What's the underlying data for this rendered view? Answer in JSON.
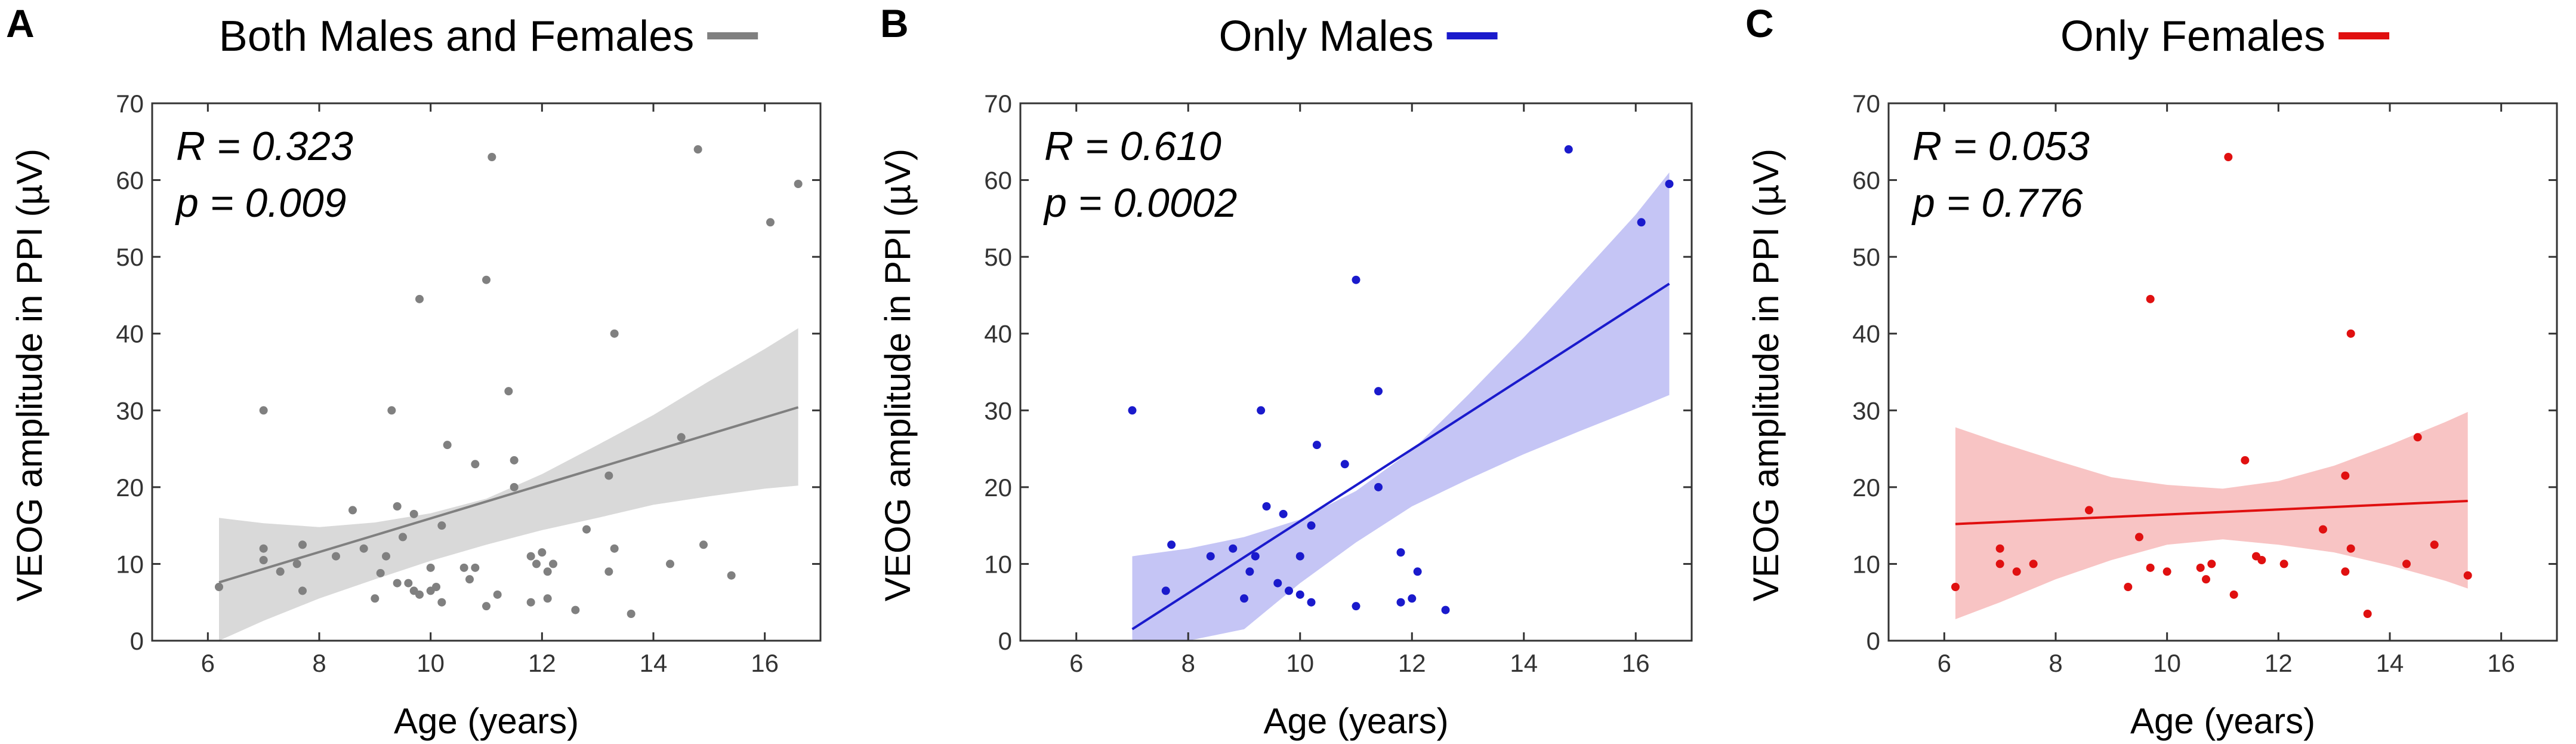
{
  "chart_data": [
    {
      "type": "scatter",
      "panel_label": "A",
      "title": "Both Males and Females",
      "xlabel": "Age (years)",
      "ylabel": "VEOG amplitude in PPI (µV)",
      "xlim": [
        5,
        17
      ],
      "ylim": [
        0,
        70
      ],
      "xticks": [
        6,
        8,
        10,
        12,
        14,
        16
      ],
      "yticks": [
        0,
        10,
        20,
        30,
        40,
        50,
        60,
        70
      ],
      "color": "#808080",
      "band_color": "#d9d9d9",
      "stats": {
        "r_text": "R = 0.323",
        "p_text": "p = 0.009"
      },
      "fit": {
        "x": [
          6.2,
          16.6
        ],
        "y": [
          7.6,
          30.4
        ]
      },
      "ci_band": {
        "x": [
          6.2,
          7,
          8,
          9,
          10,
          11,
          12,
          13,
          14,
          15,
          16,
          16.6
        ],
        "lower": [
          0,
          2.6,
          5.5,
          8.0,
          10.4,
          12.5,
          14.4,
          16.0,
          17.7,
          18.8,
          19.8,
          20.2
        ],
        "upper": [
          16.0,
          15.3,
          14.8,
          15.4,
          16.6,
          18.5,
          21.7,
          25.5,
          29.4,
          33.8,
          38.0,
          40.7
        ]
      },
      "points": [
        {
          "x": 6.2,
          "y": 7.0
        },
        {
          "x": 7.0,
          "y": 30.0
        },
        {
          "x": 7.0,
          "y": 12.0
        },
        {
          "x": 7.0,
          "y": 10.5
        },
        {
          "x": 7.3,
          "y": 9.0
        },
        {
          "x": 7.6,
          "y": 10.0
        },
        {
          "x": 7.7,
          "y": 12.5
        },
        {
          "x": 7.7,
          "y": 6.5
        },
        {
          "x": 8.3,
          "y": 11.0
        },
        {
          "x": 8.6,
          "y": 17.0
        },
        {
          "x": 8.8,
          "y": 12.0
        },
        {
          "x": 9.0,
          "y": 5.5
        },
        {
          "x": 9.1,
          "y": 8.8
        },
        {
          "x": 9.2,
          "y": 11.0
        },
        {
          "x": 9.3,
          "y": 30.0
        },
        {
          "x": 9.4,
          "y": 17.5
        },
        {
          "x": 9.4,
          "y": 7.5
        },
        {
          "x": 9.5,
          "y": 13.5
        },
        {
          "x": 9.6,
          "y": 7.5
        },
        {
          "x": 9.7,
          "y": 16.5
        },
        {
          "x": 9.7,
          "y": 6.5
        },
        {
          "x": 9.8,
          "y": 44.5
        },
        {
          "x": 9.8,
          "y": 6.0
        },
        {
          "x": 10.0,
          "y": 9.5
        },
        {
          "x": 10.0,
          "y": 6.5
        },
        {
          "x": 10.1,
          "y": 7.0
        },
        {
          "x": 10.2,
          "y": 5.0
        },
        {
          "x": 10.2,
          "y": 15.0
        },
        {
          "x": 10.3,
          "y": 25.5
        },
        {
          "x": 10.6,
          "y": 9.5
        },
        {
          "x": 10.7,
          "y": 8.0
        },
        {
          "x": 10.8,
          "y": 9.5
        },
        {
          "x": 10.8,
          "y": 23.0
        },
        {
          "x": 11.0,
          "y": 47.0
        },
        {
          "x": 11.0,
          "y": 4.5
        },
        {
          "x": 11.1,
          "y": 63.0
        },
        {
          "x": 11.2,
          "y": 6.0
        },
        {
          "x": 11.4,
          "y": 32.5
        },
        {
          "x": 11.5,
          "y": 20.0
        },
        {
          "x": 11.5,
          "y": 23.5
        },
        {
          "x": 11.8,
          "y": 11.0
        },
        {
          "x": 11.8,
          "y": 5.0
        },
        {
          "x": 11.9,
          "y": 10.0
        },
        {
          "x": 12.0,
          "y": 11.5
        },
        {
          "x": 12.1,
          "y": 5.5
        },
        {
          "x": 12.1,
          "y": 9.0
        },
        {
          "x": 12.2,
          "y": 10.0
        },
        {
          "x": 12.6,
          "y": 4.0
        },
        {
          "x": 12.8,
          "y": 14.5
        },
        {
          "x": 13.2,
          "y": 21.5
        },
        {
          "x": 13.3,
          "y": 40.0
        },
        {
          "x": 13.3,
          "y": 12.0
        },
        {
          "x": 13.2,
          "y": 9.0
        },
        {
          "x": 13.6,
          "y": 3.5
        },
        {
          "x": 14.3,
          "y": 10.0
        },
        {
          "x": 14.5,
          "y": 26.5
        },
        {
          "x": 14.8,
          "y": 64.0
        },
        {
          "x": 14.9,
          "y": 12.5
        },
        {
          "x": 15.4,
          "y": 8.5
        },
        {
          "x": 16.1,
          "y": 54.5
        },
        {
          "x": 16.6,
          "y": 59.5
        }
      ]
    },
    {
      "type": "scatter",
      "panel_label": "B",
      "title": "Only Males",
      "xlabel": "Age (years)",
      "ylabel": "VEOG amplitude in PPI (µV)",
      "xlim": [
        5,
        17
      ],
      "ylim": [
        0,
        70
      ],
      "xticks": [
        6,
        8,
        10,
        12,
        14,
        16
      ],
      "yticks": [
        0,
        10,
        20,
        30,
        40,
        50,
        60,
        70
      ],
      "color": "#1a1acc",
      "band_color": "#c5c5f5",
      "stats": {
        "r_text": "R = 0.610",
        "p_text": "p = 0.0002"
      },
      "fit": {
        "x": [
          7.0,
          16.6
        ],
        "y": [
          1.5,
          46.5
        ]
      },
      "ci_band": {
        "x": [
          7,
          8,
          9,
          10,
          11,
          12,
          13,
          14,
          15,
          16,
          16.6
        ],
        "lower": [
          0,
          0,
          1.5,
          7.5,
          12.8,
          17.5,
          21.0,
          24.3,
          27.3,
          30.2,
          32.0
        ],
        "upper": [
          11.0,
          12.0,
          13.5,
          15.8,
          19.5,
          24.8,
          32.0,
          39.5,
          47.5,
          55.5,
          61.0
        ]
      },
      "points": [
        {
          "x": 7.0,
          "y": 30.0
        },
        {
          "x": 7.7,
          "y": 12.5
        },
        {
          "x": 7.6,
          "y": 6.5
        },
        {
          "x": 8.4,
          "y": 11.0
        },
        {
          "x": 8.8,
          "y": 12.0
        },
        {
          "x": 9.0,
          "y": 5.5
        },
        {
          "x": 9.1,
          "y": 9.0
        },
        {
          "x": 9.2,
          "y": 11.0
        },
        {
          "x": 9.3,
          "y": 30.0
        },
        {
          "x": 9.4,
          "y": 17.5
        },
        {
          "x": 9.6,
          "y": 7.5
        },
        {
          "x": 9.7,
          "y": 16.5
        },
        {
          "x": 9.8,
          "y": 6.5
        },
        {
          "x": 10.0,
          "y": 6.0
        },
        {
          "x": 10.0,
          "y": 11.0
        },
        {
          "x": 10.2,
          "y": 5.0
        },
        {
          "x": 10.2,
          "y": 15.0
        },
        {
          "x": 10.3,
          "y": 25.5
        },
        {
          "x": 10.8,
          "y": 23.0
        },
        {
          "x": 11.0,
          "y": 47.0
        },
        {
          "x": 11.0,
          "y": 4.5
        },
        {
          "x": 11.4,
          "y": 32.5
        },
        {
          "x": 11.4,
          "y": 20.0
        },
        {
          "x": 11.8,
          "y": 11.5
        },
        {
          "x": 11.8,
          "y": 5.0
        },
        {
          "x": 12.0,
          "y": 5.5
        },
        {
          "x": 12.1,
          "y": 9.0
        },
        {
          "x": 12.6,
          "y": 4.0
        },
        {
          "x": 14.8,
          "y": 64.0
        },
        {
          "x": 16.1,
          "y": 54.5
        },
        {
          "x": 16.6,
          "y": 59.5
        }
      ]
    },
    {
      "type": "scatter",
      "panel_label": "C",
      "title": "Only Females",
      "xlabel": "Age (years)",
      "ylabel": "VEOG amplitude in PPI (µV)",
      "xlim": [
        5,
        17
      ],
      "ylim": [
        0,
        70
      ],
      "xticks": [
        6,
        8,
        10,
        12,
        14,
        16
      ],
      "yticks": [
        0,
        10,
        20,
        30,
        40,
        50,
        60,
        70
      ],
      "color": "#e01010",
      "band_color": "#f8c4c4",
      "stats": {
        "r_text": "R = 0.053",
        "p_text": "p = 0.776"
      },
      "fit": {
        "x": [
          6.2,
          15.4
        ],
        "y": [
          15.2,
          18.2
        ]
      },
      "ci_band": {
        "x": [
          6.2,
          7,
          8,
          9,
          10,
          11,
          12,
          13,
          14,
          15,
          15.4
        ],
        "lower": [
          2.8,
          5.0,
          8.0,
          10.5,
          12.5,
          13.2,
          12.5,
          11.5,
          9.8,
          7.8,
          6.8
        ],
        "upper": [
          27.8,
          25.8,
          23.5,
          21.3,
          20.3,
          19.8,
          20.8,
          22.8,
          25.5,
          28.5,
          29.8
        ]
      },
      "points": [
        {
          "x": 6.2,
          "y": 7.0
        },
        {
          "x": 7.0,
          "y": 12.0
        },
        {
          "x": 7.0,
          "y": 10.0
        },
        {
          "x": 7.3,
          "y": 9.0
        },
        {
          "x": 7.6,
          "y": 10.0
        },
        {
          "x": 8.6,
          "y": 17.0
        },
        {
          "x": 9.3,
          "y": 7.0
        },
        {
          "x": 9.5,
          "y": 13.5
        },
        {
          "x": 9.7,
          "y": 9.5
        },
        {
          "x": 9.7,
          "y": 44.5
        },
        {
          "x": 10.0,
          "y": 9.0
        },
        {
          "x": 10.6,
          "y": 9.5
        },
        {
          "x": 10.7,
          "y": 8.0
        },
        {
          "x": 10.8,
          "y": 10.0
        },
        {
          "x": 11.1,
          "y": 63.0
        },
        {
          "x": 11.2,
          "y": 6.0
        },
        {
          "x": 11.4,
          "y": 23.5
        },
        {
          "x": 11.6,
          "y": 11.0
        },
        {
          "x": 11.7,
          "y": 10.5
        },
        {
          "x": 12.1,
          "y": 10.0
        },
        {
          "x": 12.8,
          "y": 14.5
        },
        {
          "x": 13.2,
          "y": 9.0
        },
        {
          "x": 13.2,
          "y": 21.5
        },
        {
          "x": 13.3,
          "y": 12.0
        },
        {
          "x": 13.3,
          "y": 40.0
        },
        {
          "x": 13.6,
          "y": 3.5
        },
        {
          "x": 14.3,
          "y": 10.0
        },
        {
          "x": 14.5,
          "y": 26.5
        },
        {
          "x": 14.8,
          "y": 12.5
        },
        {
          "x": 15.4,
          "y": 8.5
        }
      ]
    }
  ]
}
